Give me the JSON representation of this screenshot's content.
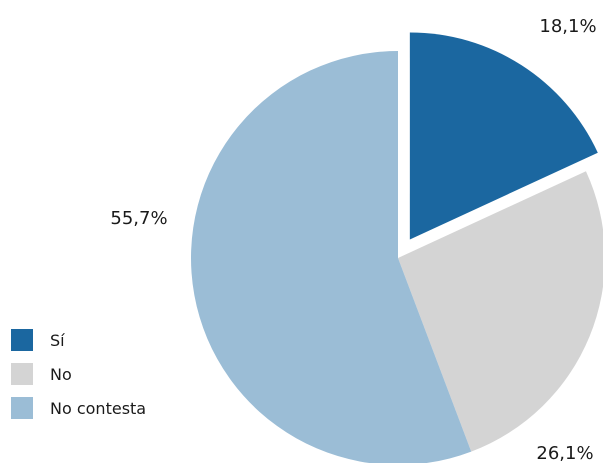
{
  "chart_data": {
    "type": "pie",
    "slices": [
      {
        "label": "Sí",
        "value": 18.1,
        "display": "18,1%",
        "color": "#1b67a0",
        "exploded": true
      },
      {
        "label": "No",
        "value": 26.1,
        "display": "26,1%",
        "color": "#d4d4d4",
        "exploded": false
      },
      {
        "label": "No contesta",
        "value": 55.7,
        "display": "55,7%",
        "color": "#9bbdd6",
        "exploded": false
      }
    ],
    "start_angle_deg": 0,
    "direction": "clockwise",
    "legend_position": "bottom-left"
  }
}
